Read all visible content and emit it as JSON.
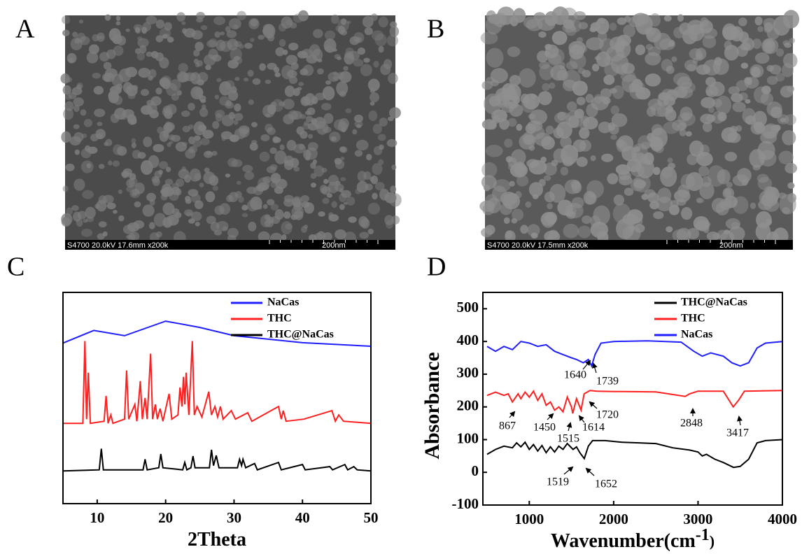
{
  "panel_labels": [
    "A",
    "B",
    "C",
    "D"
  ],
  "sem_images": [
    {
      "caption": "S4700 20.0kV 17.6mm x200k",
      "scale": "200nm"
    },
    {
      "caption": "S4700 20.0kV 17.5mm x200k",
      "scale": "200nm"
    }
  ],
  "chart_data": [
    {
      "type": "line",
      "xlabel": "2Theta",
      "xlim": [
        5,
        50
      ],
      "xticks": [
        10,
        20,
        30,
        40,
        50
      ],
      "ylim": [
        0,
        100
      ],
      "legend": "top-right",
      "series": [
        {
          "name": "NaCas",
          "color": "#1f1fff",
          "x": [
            5,
            9.5,
            14,
            20,
            25,
            30,
            40,
            50
          ],
          "values": [
            76,
            82,
            79.5,
            86.4,
            83.4,
            79.5,
            76.2,
            74.5
          ]
        },
        {
          "name": "THC",
          "color": "#ff1f1f",
          "x": [
            5,
            7.9,
            8.2,
            8.45,
            8.7,
            9.0,
            11.0,
            11.3,
            11.6,
            12.0,
            12.3,
            14.0,
            14.3,
            14.6,
            15.5,
            15.8,
            16.3,
            16.6,
            17.0,
            17.3,
            17.8,
            18.1,
            18.5,
            18.8,
            19.2,
            19.6,
            20.5,
            20.9,
            21.8,
            22.1,
            22.4,
            22.6,
            22.8,
            23.0,
            23.4,
            23.9,
            24.2,
            24.6,
            25.3,
            26.3,
            26.7,
            27.2,
            27.6,
            28.0,
            28.4,
            29.6,
            30.2,
            32.0,
            32.6,
            36.5,
            36.9,
            37.2,
            37.6,
            40.2,
            44.3,
            44.8,
            45.3,
            46,
            50
          ],
          "values": [
            38,
            38,
            77,
            40,
            62,
            38,
            39,
            51,
            38,
            42,
            38,
            40,
            63,
            40,
            47,
            39,
            58,
            40,
            50,
            40,
            71,
            40,
            47,
            40,
            45,
            39,
            52,
            40,
            42,
            55,
            46,
            60,
            47,
            62,
            42,
            77,
            42,
            46,
            41,
            53,
            42,
            46,
            41,
            46,
            40,
            44,
            40,
            43,
            39,
            46,
            40,
            44,
            39,
            40,
            44,
            39,
            42,
            39,
            38
          ]
        },
        {
          "name": "THC@NaCas",
          "color": "#000000",
          "x": [
            5,
            10.3,
            10.6,
            10.9,
            16.7,
            17.0,
            17.3,
            19.0,
            19.3,
            19.6,
            22.5,
            22.8,
            23.1,
            23.7,
            24.0,
            24.3,
            26.4,
            26.7,
            27.0,
            27.4,
            27.8,
            30.5,
            30.8,
            31.1,
            31.3,
            31.7,
            33,
            33.4,
            36.5,
            36.9,
            40,
            40.4,
            44,
            44.4,
            46.2,
            46.6,
            47.5,
            48,
            50
          ],
          "values": [
            15.5,
            16,
            26,
            16,
            16,
            21,
            16,
            17,
            23.5,
            17,
            16,
            19.5,
            16,
            17,
            22.5,
            17,
            17,
            25.5,
            18,
            22.8,
            17,
            17,
            21,
            18,
            21,
            17,
            19,
            16,
            19.5,
            16,
            18.5,
            16,
            17.5,
            16,
            18.5,
            16,
            17.5,
            16,
            15.5
          ]
        }
      ]
    },
    {
      "type": "line",
      "xlabel": "Wavenumber(cm",
      "xlabel_sup": "-1",
      "xlabel_end": ")",
      "ylabel": "Absorbance",
      "xlim": [
        450,
        4000
      ],
      "xticks": [
        1000,
        2000,
        3000,
        4000
      ],
      "ylim": [
        -100,
        550
      ],
      "yticks": [
        -100,
        0,
        100,
        200,
        300,
        400,
        500
      ],
      "legend": "top-right",
      "series": [
        {
          "name": "THC@NaCas",
          "color": "#000000",
          "x": [
            500,
            600,
            700,
            800,
            850,
            900,
            950,
            1000,
            1050,
            1100,
            1150,
            1200,
            1250,
            1300,
            1350,
            1400,
            1450,
            1519,
            1560,
            1600,
            1652,
            1700,
            1750,
            1900,
            2100,
            2300,
            2500,
            2700,
            2900,
            3000,
            3050,
            3100,
            3200,
            3300,
            3420,
            3500,
            3600,
            3700,
            3800,
            4000
          ],
          "values": [
            55,
            70,
            80,
            75,
            90,
            78,
            92,
            70,
            85,
            65,
            82,
            60,
            78,
            62,
            80,
            70,
            88,
            70,
            78,
            60,
            42,
            80,
            97,
            97,
            92,
            90,
            88,
            75,
            68,
            62,
            50,
            55,
            40,
            30,
            15,
            18,
            40,
            90,
            97,
            100
          ]
        },
        {
          "name": "THC",
          "color": "#ff1f1f",
          "x": [
            500,
            600,
            700,
            750,
            800,
            867,
            900,
            950,
            1000,
            1050,
            1100,
            1150,
            1200,
            1250,
            1300,
            1350,
            1400,
            1450,
            1500,
            1515,
            1560,
            1614,
            1650,
            1720,
            1800,
            2000,
            2500,
            2848,
            2900,
            3000,
            3300,
            3417,
            3480,
            3550,
            4000
          ],
          "values": [
            235,
            245,
            235,
            240,
            215,
            240,
            225,
            245,
            230,
            248,
            220,
            240,
            205,
            215,
            190,
            200,
            185,
            230,
            200,
            180,
            225,
            190,
            240,
            250,
            248,
            247,
            246,
            232,
            240,
            248,
            248,
            200,
            220,
            248,
            250
          ]
        },
        {
          "name": "NaCas",
          "color": "#1f1fff",
          "x": [
            500,
            600,
            700,
            800,
            900,
            1000,
            1100,
            1200,
            1300,
            1400,
            1500,
            1560,
            1640,
            1700,
            1739,
            1780,
            1850,
            2000,
            2400,
            2800,
            2950,
            3050,
            3150,
            3300,
            3400,
            3500,
            3600,
            3700,
            3800,
            4000
          ],
          "values": [
            385,
            370,
            385,
            375,
            400,
            395,
            385,
            390,
            370,
            360,
            350,
            345,
            335,
            345,
            325,
            360,
            395,
            400,
            402,
            398,
            370,
            355,
            365,
            355,
            335,
            325,
            335,
            380,
            395,
            400
          ]
        }
      ],
      "annotations": [
        "1640",
        "1739",
        "867",
        "1450",
        "1720",
        "1515",
        "1614",
        "2848",
        "3417",
        "1519",
        "1652"
      ]
    }
  ]
}
